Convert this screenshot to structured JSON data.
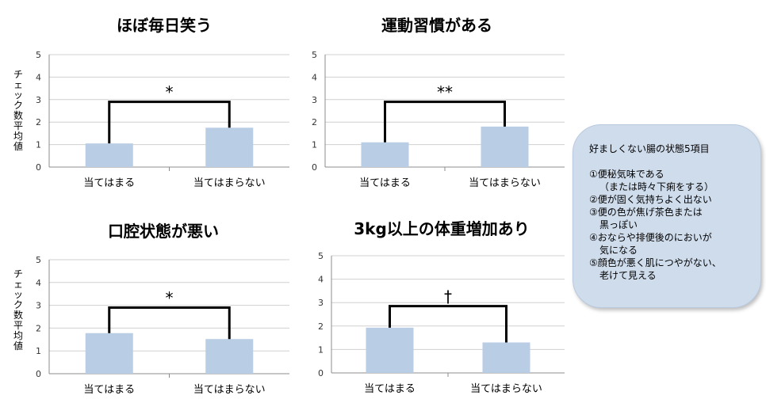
{
  "y_axis_label": "チェック数平均値",
  "chart_data": [
    {
      "type": "bar",
      "title": "ほぼ毎日笑う",
      "categories": [
        "当てはまる",
        "当てはまらない"
      ],
      "values": [
        1.05,
        1.75
      ],
      "ylim": [
        0,
        5
      ],
      "yticks": [
        "0",
        "1",
        "2",
        "3",
        "4",
        "5"
      ],
      "ylabel": "チェック数平均値",
      "significance": "*",
      "bracket_level": 2.9,
      "color": "#b9cde5",
      "grid": true
    },
    {
      "type": "bar",
      "title": "運動習慣がある",
      "categories": [
        "当てはまる",
        "当てはまらない"
      ],
      "values": [
        1.1,
        1.8
      ],
      "ylim": [
        0,
        5
      ],
      "yticks": [
        "0",
        "1",
        "2",
        "3",
        "4",
        "5"
      ],
      "ylabel": "",
      "significance": "**",
      "bracket_level": 2.9,
      "color": "#b9cde5",
      "grid": true
    },
    {
      "type": "bar",
      "title": "口腔状態が悪い",
      "categories": [
        "当てはまる",
        "当てはまらない"
      ],
      "values": [
        1.78,
        1.52
      ],
      "ylim": [
        0,
        5
      ],
      "yticks": [
        "0",
        "1",
        "2",
        "3",
        "4",
        "5"
      ],
      "ylabel": "チェック数平均値",
      "significance": "*",
      "bracket_level": 2.9,
      "color": "#b9cde5",
      "grid": true
    },
    {
      "type": "bar",
      "title": "3kg以上の体重増加あり",
      "categories": [
        "当てはまる",
        "当てはまらない"
      ],
      "values": [
        1.93,
        1.3
      ],
      "ylim": [
        0,
        5
      ],
      "yticks": [
        "0",
        "1",
        "2",
        "3",
        "4",
        "5"
      ],
      "ylabel": "",
      "significance": "†",
      "bracket_level": 2.85,
      "color": "#b9cde5",
      "grid": true
    }
  ],
  "legend_box": {
    "title": "好ましくない腸の状態5項目",
    "items": [
      "①便秘気味である",
      "（または時々下痢をする）",
      "②便が固く気持ちよく出ない",
      "③便の色が焦げ茶色または",
      "黒っぽい",
      "④おならや排便後のにおいが",
      "気になる",
      "⑤顔色が悪く肌につやがない、",
      "老けて見える"
    ]
  }
}
